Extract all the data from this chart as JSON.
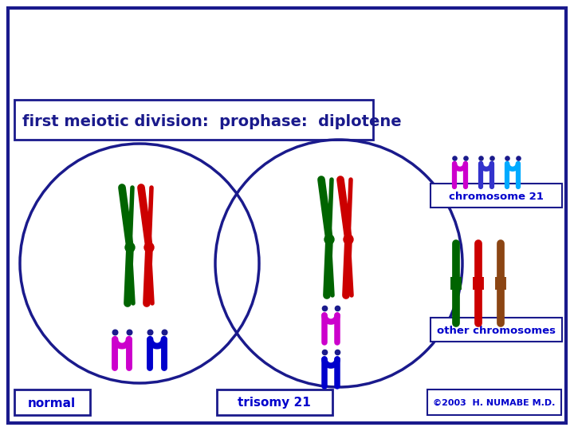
{
  "title": "first meiotic division:  prophase:  diplotene",
  "title_color": "#1a1a8c",
  "bg_color": "#ffffff",
  "border_color": "#1a1a8c",
  "label_normal": "normal",
  "label_trisomy": "trisomy 21",
  "label_chr21": "chromosome 21",
  "label_other": "other chromosomes",
  "label_copyright": "©2003  H. NUMABE M.D.",
  "label_color": "#0000cc",
  "circle_color": "#1a1a8c",
  "chr_green": "#006400",
  "chr_red": "#cc0000",
  "chr_magenta": "#cc00cc",
  "chr_blue": "#0000cc",
  "chr_darkblue": "#1a1a8c",
  "chr_cyan": "#00aaff",
  "chr_brown": "#8B4513"
}
